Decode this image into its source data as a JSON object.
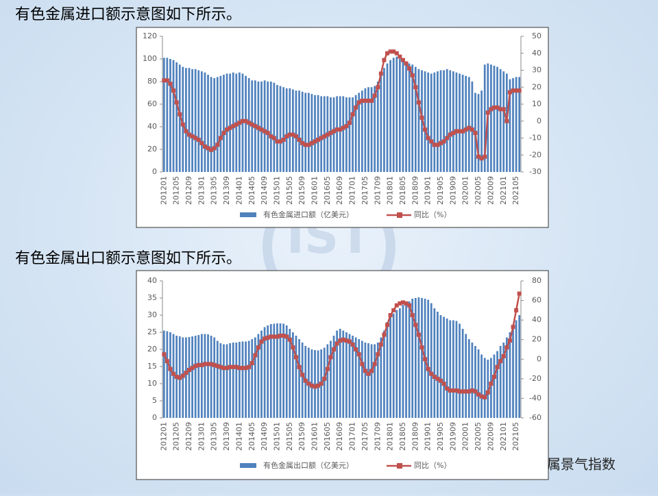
{
  "chart_data": [
    {
      "type": "combo",
      "title": "有色金属进口额示意图如下所示。",
      "categories": [
        "201201",
        null,
        null,
        null,
        "201205",
        null,
        null,
        null,
        "201209",
        null,
        null,
        null,
        "201301",
        null,
        null,
        null,
        "201305",
        null,
        null,
        null,
        "201309",
        null,
        null,
        null,
        "201401",
        null,
        null,
        null,
        "201405",
        null,
        null,
        null,
        "201409",
        null,
        null,
        null,
        "201501",
        null,
        null,
        null,
        "201505",
        null,
        null,
        null,
        "201509",
        null,
        null,
        null,
        "201601",
        null,
        null,
        null,
        "201605",
        null,
        null,
        null,
        "201609",
        null,
        null,
        null,
        "201701",
        null,
        null,
        null,
        "201705",
        null,
        null,
        null,
        "201709",
        null,
        null,
        null,
        "201801",
        null,
        null,
        null,
        "201805",
        null,
        null,
        null,
        "201809",
        null,
        null,
        null,
        "201901",
        null,
        null,
        null,
        "201905",
        null,
        null,
        null,
        "201909",
        null,
        null,
        null,
        "202001",
        null,
        null,
        null,
        "202005",
        null,
        null,
        null,
        "202009",
        null,
        null,
        null,
        "202101",
        null,
        null,
        null,
        "202105",
        null
      ],
      "ylim": [
        0,
        120
      ],
      "yticks": [
        0,
        20,
        40,
        60,
        80,
        100,
        120
      ],
      "y2lim": [
        -30,
        50
      ],
      "y2ticks": [
        -30,
        -20,
        -10,
        0,
        10,
        20,
        30,
        40,
        50
      ],
      "series": [
        {
          "name": "有色金属进口额（亿美元）",
          "type": "bar",
          "color": "#4f81bd",
          "values": [
            101,
            101,
            100,
            99,
            97,
            95,
            93,
            92,
            92,
            91,
            91,
            90,
            89,
            88,
            86,
            84,
            83,
            84,
            85,
            86,
            87,
            87,
            88,
            87,
            88,
            87,
            85,
            83,
            81,
            81,
            80,
            80,
            81,
            80,
            80,
            79,
            77,
            76,
            75,
            74,
            74,
            73,
            72,
            72,
            71,
            70,
            70,
            69,
            68,
            68,
            67,
            67,
            67,
            66,
            66,
            67,
            67,
            67,
            66,
            66,
            66,
            68,
            70,
            72,
            74,
            75,
            75,
            76,
            80,
            86,
            92,
            96,
            99,
            101,
            102,
            100,
            98,
            97,
            96,
            95,
            93,
            91,
            90,
            89,
            88,
            87,
            88,
            89,
            90,
            90,
            91,
            90,
            89,
            88,
            87,
            86,
            85,
            84,
            80,
            70,
            69,
            72,
            95,
            96,
            95,
            94,
            93,
            91,
            89,
            87,
            82,
            83,
            84,
            84
          ]
        },
        {
          "name": "同比（%）",
          "type": "line",
          "axis": "y2",
          "color": "#c0504d",
          "values": [
            24,
            24,
            22,
            18,
            11,
            4,
            -2,
            -6,
            -8,
            -9,
            -10,
            -11,
            -13,
            -15,
            -16,
            -17,
            -16,
            -14,
            -10,
            -7,
            -5,
            -4,
            -3,
            -2,
            -1,
            0,
            0,
            -1,
            -2,
            -3,
            -4,
            -5,
            -6,
            -7,
            -9,
            -10,
            -12,
            -12,
            -11,
            -9,
            -8,
            -8,
            -9,
            -11,
            -13,
            -14,
            -14,
            -13,
            -12,
            -11,
            -10,
            -9,
            -8,
            -7,
            -6,
            -5,
            -5,
            -4,
            -3,
            -1,
            4,
            8,
            11,
            12,
            12,
            12,
            12,
            15,
            20,
            28,
            36,
            40,
            41,
            41,
            40,
            38,
            36,
            34,
            31,
            27,
            20,
            11,
            2,
            -5,
            -10,
            -12,
            -14,
            -14,
            -13,
            -12,
            -10,
            -8,
            -7,
            -6,
            -6,
            -6,
            -5,
            -4,
            -5,
            -7,
            -21,
            -22,
            -21,
            5,
            7,
            8,
            8,
            7,
            7,
            0,
            17,
            18,
            18,
            18
          ]
        }
      ]
    },
    {
      "type": "combo",
      "title": "有色金属出口额示意图如下所示。",
      "categories": [
        "201201",
        null,
        null,
        null,
        "201205",
        null,
        null,
        null,
        "201209",
        null,
        null,
        null,
        "201301",
        null,
        null,
        null,
        "201305",
        null,
        null,
        null,
        "201309",
        null,
        null,
        null,
        "201401",
        null,
        null,
        null,
        "201405",
        null,
        null,
        null,
        "201409",
        null,
        null,
        null,
        "201501",
        null,
        null,
        null,
        "201505",
        null,
        null,
        null,
        "201509",
        null,
        null,
        null,
        "201601",
        null,
        null,
        null,
        "201605",
        null,
        null,
        null,
        "201609",
        null,
        null,
        null,
        "201701",
        null,
        null,
        null,
        "201705",
        null,
        null,
        null,
        "201709",
        null,
        null,
        null,
        "201801",
        null,
        null,
        null,
        "201805",
        null,
        null,
        null,
        "201809",
        null,
        null,
        null,
        "201901",
        null,
        null,
        null,
        "201905",
        null,
        null,
        null,
        "201909",
        null,
        null,
        null,
        "202001",
        null,
        null,
        null,
        "202005",
        null,
        null,
        null,
        "202009",
        null,
        null,
        null,
        "202101",
        null,
        null,
        null,
        "202105",
        null
      ],
      "ylim": [
        0,
        40
      ],
      "yticks": [
        0,
        5,
        10,
        15,
        20,
        25,
        30,
        35,
        40
      ],
      "y2lim": [
        -60,
        80
      ],
      "y2ticks": [
        -60,
        -40,
        -20,
        0,
        20,
        40,
        60,
        80
      ],
      "series": [
        {
          "name": "有色金属出口额（亿美元）",
          "type": "bar",
          "color": "#4f81bd",
          "values": [
            25.5,
            25.3,
            25,
            24.5,
            24,
            23.8,
            23.5,
            23.5,
            23.6,
            23.8,
            24,
            24.2,
            24.5,
            24.5,
            24.4,
            24,
            23.5,
            22.5,
            21.8,
            21.5,
            21.5,
            21.8,
            22,
            22,
            22.2,
            22.3,
            22.3,
            22.5,
            23,
            23.5,
            24.5,
            25.5,
            26.5,
            27,
            27.4,
            27.5,
            27.6,
            27.6,
            27.5,
            27,
            26,
            25,
            24,
            23,
            22,
            21,
            20.5,
            20,
            19.8,
            19.7,
            20,
            20.5,
            21.5,
            22.5,
            24,
            25.5,
            26,
            25.5,
            25,
            24.5,
            24,
            23.5,
            23,
            22.5,
            22,
            21.8,
            21.5,
            21.5,
            22,
            23.5,
            25.5,
            28,
            29.5,
            30.5,
            31.5,
            32,
            33,
            33.5,
            34,
            34.8,
            35,
            35.2,
            35,
            34.8,
            34.5,
            33.5,
            32,
            31,
            30,
            29.5,
            29,
            28.5,
            28.5,
            28.3,
            27.5,
            26,
            24.5,
            23,
            22,
            21,
            20,
            18.5,
            17.5,
            17,
            17.5,
            18.5,
            19.5,
            21,
            22,
            23.5,
            25,
            27,
            28.5,
            30
          ]
        },
        {
          "name": "同比（%）",
          "type": "line",
          "axis": "y2",
          "color": "#c0504d",
          "values": [
            5,
            -2,
            -10,
            -15,
            -18,
            -19,
            -17,
            -14,
            -11,
            -9,
            -7,
            -6,
            -6,
            -5,
            -5,
            -5,
            -6,
            -7,
            -8,
            -9,
            -9,
            -8,
            -8,
            -8,
            -9,
            -9,
            -9,
            -8,
            -4,
            4,
            12,
            18,
            21,
            22,
            23,
            23,
            23,
            24,
            24,
            23,
            20,
            12,
            2,
            -8,
            -16,
            -22,
            -25,
            -27,
            -28,
            -27,
            -25,
            -20,
            -10,
            2,
            10,
            16,
            19,
            20,
            19,
            18,
            15,
            10,
            5,
            -5,
            -12,
            -15,
            -12,
            -5,
            5,
            15,
            25,
            35,
            45,
            50,
            55,
            57,
            58,
            57,
            55,
            45,
            35,
            25,
            12,
            0,
            -10,
            -15,
            -18,
            -20,
            -22,
            -25,
            -30,
            -32,
            -32,
            -32,
            -33,
            -33,
            -33,
            -33,
            -32,
            -33,
            -36,
            -38,
            -39,
            -34,
            -25,
            -18,
            -8,
            -2,
            3,
            12,
            19,
            33,
            50,
            67
          ]
        }
      ]
    }
  ],
  "footer": "有色金属景气指数"
}
